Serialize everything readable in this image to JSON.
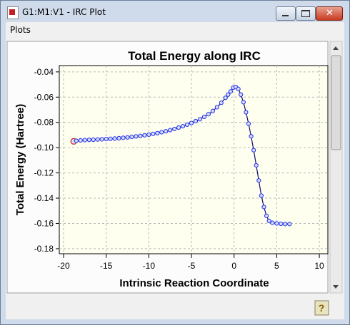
{
  "window": {
    "title": "G1:M1:V1 - IRC Plot",
    "menu": [
      "Plots"
    ]
  },
  "chart_data": {
    "type": "line",
    "title": "Total Energy along IRC",
    "x_label": "Intrinsic Reaction Coordinate",
    "y_label": "Total Energy (Hartree)",
    "x": [
      -18.8,
      -18.5,
      -18,
      -17.5,
      -17,
      -16.5,
      -16,
      -15.5,
      -15,
      -14.5,
      -14,
      -13.5,
      -13,
      -12.5,
      -12,
      -11.5,
      -11,
      -10.5,
      -10,
      -9.5,
      -9,
      -8.5,
      -8,
      -7.5,
      -7,
      -6.5,
      -6,
      -5.5,
      -5,
      -4.5,
      -4,
      -3.5,
      -3,
      -2.5,
      -2,
      -1.5,
      -1,
      -0.7,
      -0.4,
      -0.1,
      0.2,
      0.5,
      0.8,
      1.1,
      1.4,
      1.7,
      2,
      2.3,
      2.6,
      2.9,
      3.2,
      3.5,
      3.8,
      4.1,
      4.5,
      5,
      5.5,
      6,
      6.5
    ],
    "values": [
      -0.095,
      -0.0945,
      -0.0942,
      -0.094,
      -0.0938,
      -0.0937,
      -0.0935,
      -0.0934,
      -0.0932,
      -0.093,
      -0.0928,
      -0.0925,
      -0.0922,
      -0.0919,
      -0.0915,
      -0.0911,
      -0.0907,
      -0.0902,
      -0.0897,
      -0.0891,
      -0.0885,
      -0.0878,
      -0.087,
      -0.0861,
      -0.0852,
      -0.0841,
      -0.083,
      -0.0818,
      -0.0805,
      -0.079,
      -0.0775,
      -0.0756,
      -0.0735,
      -0.071,
      -0.068,
      -0.0645,
      -0.0605,
      -0.058,
      -0.0555,
      -0.0525,
      -0.052,
      -0.0535,
      -0.058,
      -0.064,
      -0.072,
      -0.081,
      -0.091,
      -0.102,
      -0.114,
      -0.126,
      -0.138,
      -0.147,
      -0.154,
      -0.158,
      -0.1595,
      -0.16,
      -0.1603,
      -0.1605,
      -0.1605
    ],
    "line_color": "#101070",
    "marker_color": "#2030e8",
    "marker_fill": "#d8dcf8",
    "highlight": {
      "index": 0,
      "color": "#d03030"
    },
    "plot_background": "#fffff0",
    "grid": true,
    "xlim": [
      -20.5,
      11
    ],
    "xticks": [
      -20,
      -15,
      -10,
      -5,
      0,
      5,
      10
    ],
    "ylim": [
      -0.184,
      -0.035
    ],
    "yticks": [
      -0.04,
      -0.06,
      -0.08,
      {
        "value": -0.1,
        "label": "-0.10"
      },
      -0.12,
      -0.14,
      -0.16,
      -0.18
    ]
  }
}
